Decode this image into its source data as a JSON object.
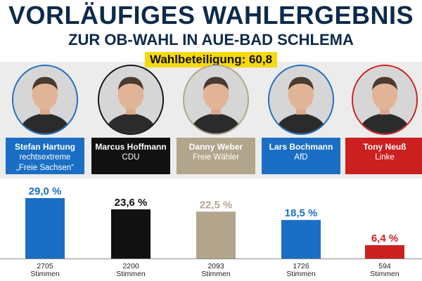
{
  "header": {
    "title": "VORLÄUFIGES WAHLERGEBNIS",
    "subtitle": "ZUR OB-WAHL IN AUE-BAD SCHLEMA",
    "turnout": "Wahlbeteiligung: 60,8 %"
  },
  "candidates": [
    {
      "name": "Stefan Hartung",
      "party_lines": [
        "rechtsextreme",
        "„Freie Sachsen“"
      ],
      "color": "#1a6fc4",
      "ring": "#1a6fc4",
      "percent_label": "29,0 %",
      "votes": "2705",
      "votes_unit": "Stimmen"
    },
    {
      "name": "Marcus Hoffmann",
      "party_lines": [
        "CDU"
      ],
      "color": "#111111",
      "ring": "#111111",
      "percent_label": "23,6 %",
      "votes": "2200",
      "votes_unit": "Stimmen"
    },
    {
      "name": "Danny Weber",
      "party_lines": [
        "Freie Wähler"
      ],
      "color": "#b3a58c",
      "ring": "#b3a58c",
      "percent_label": "22,5 %",
      "votes": "2093",
      "votes_unit": "Stimmen"
    },
    {
      "name": "Lars Bochmann",
      "party_lines": [
        "AfD"
      ],
      "color": "#1a6fc4",
      "ring": "#1a6fc4",
      "percent_label": "18,5 %",
      "votes": "1726",
      "votes_unit": "Stimmen"
    },
    {
      "name": "Tony Neuß",
      "party_lines": [
        "Linke"
      ],
      "color": "#cc1f1f",
      "ring": "#cc1f1f",
      "percent_label": "6,4 %",
      "votes": "594",
      "votes_unit": "Stimmen"
    }
  ],
  "chart_data": {
    "type": "bar",
    "categories": [
      "Stefan Hartung",
      "Marcus Hoffmann",
      "Danny Weber",
      "Lars Bochmann",
      "Tony Neuß"
    ],
    "values": [
      29.0,
      23.6,
      22.5,
      18.5,
      6.4
    ],
    "value_labels": [
      "29,0 %",
      "23,6 %",
      "22,5 %",
      "18,5 %",
      "6,4 %"
    ],
    "votes": [
      2705,
      2200,
      2093,
      1726,
      594
    ],
    "colors": [
      "#1a6fc4",
      "#111111",
      "#b3a58c",
      "#1a6fc4",
      "#cc1f1f"
    ],
    "title": "VORLÄUFIGES WAHLERGEBNIS",
    "subtitle": "ZUR OB-WAHL IN AUE-BAD SCHLEMA",
    "ylim": [
      0,
      29.0
    ],
    "grid": false,
    "legend": "none"
  }
}
